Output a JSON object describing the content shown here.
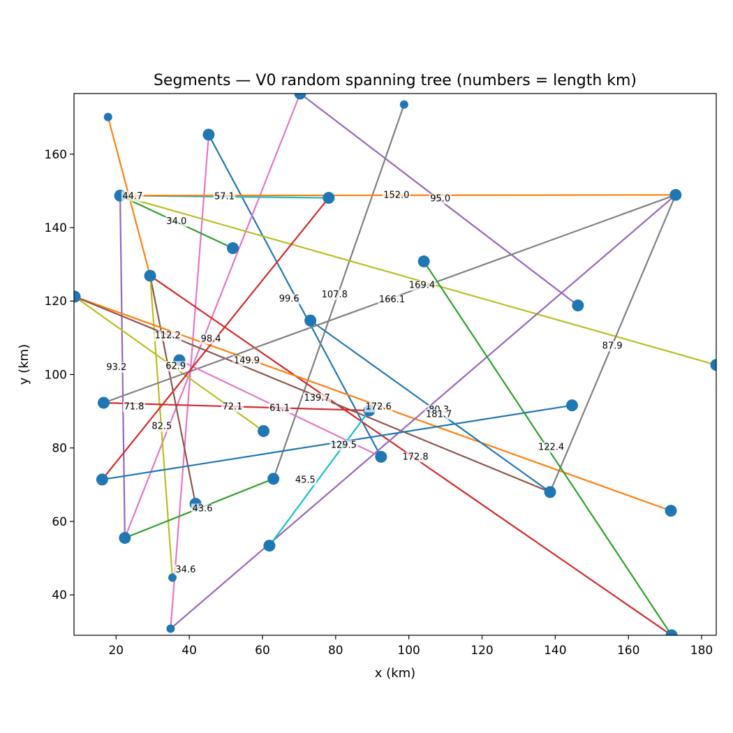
{
  "chart_data": {
    "type": "scatter",
    "title": "Segments — V0 random spanning tree (numbers = length km)",
    "xlabel": "x (km)",
    "ylabel": "y (km)",
    "xlim": [
      8.5,
      184
    ],
    "ylim": [
      29,
      176.5
    ],
    "xticks": [
      20,
      40,
      60,
      80,
      100,
      120,
      140,
      160,
      180
    ],
    "yticks": [
      40,
      60,
      80,
      100,
      120,
      140,
      160
    ],
    "grid": false,
    "legend": "none",
    "marker_color": "#1f77b4",
    "nodes": [
      {
        "id": 0,
        "x": 17.8,
        "y": 170.1,
        "big": false
      },
      {
        "id": 1,
        "x": 45.3,
        "y": 165.3,
        "big": true
      },
      {
        "id": 2,
        "x": 70.3,
        "y": 176.5,
        "big": true
      },
      {
        "id": 3,
        "x": 98.7,
        "y": 173.5,
        "big": false
      },
      {
        "id": 4,
        "x": 21.1,
        "y": 148.7,
        "big": true
      },
      {
        "id": 5,
        "x": 78.1,
        "y": 148.1,
        "big": true
      },
      {
        "id": 6,
        "x": 172.9,
        "y": 148.9,
        "big": true
      },
      {
        "id": 7,
        "x": 51.9,
        "y": 134.4,
        "big": true
      },
      {
        "id": 8,
        "x": 104.1,
        "y": 130.8,
        "big": true
      },
      {
        "id": 9,
        "x": 29.3,
        "y": 126.9,
        "big": true
      },
      {
        "id": 10,
        "x": 8.7,
        "y": 121.2,
        "big": true
      },
      {
        "id": 11,
        "x": 146.2,
        "y": 118.8,
        "big": true
      },
      {
        "id": 12,
        "x": 73.1,
        "y": 114.7,
        "big": true
      },
      {
        "id": 13,
        "x": 37.3,
        "y": 103.9,
        "big": true
      },
      {
        "id": 14,
        "x": 184.0,
        "y": 102.6,
        "big": true
      },
      {
        "id": 15,
        "x": 16.6,
        "y": 92.3,
        "big": true
      },
      {
        "id": 16,
        "x": 89.2,
        "y": 90.2,
        "big": true
      },
      {
        "id": 17,
        "x": 144.6,
        "y": 91.6,
        "big": true
      },
      {
        "id": 18,
        "x": 60.3,
        "y": 84.6,
        "big": true
      },
      {
        "id": 19,
        "x": 92.4,
        "y": 77.6,
        "big": true
      },
      {
        "id": 20,
        "x": 16.2,
        "y": 71.4,
        "big": true
      },
      {
        "id": 21,
        "x": 63.0,
        "y": 71.6,
        "big": true
      },
      {
        "id": 22,
        "x": 138.6,
        "y": 68.0,
        "big": true
      },
      {
        "id": 23,
        "x": 41.7,
        "y": 64.8,
        "big": true
      },
      {
        "id": 24,
        "x": 171.6,
        "y": 62.9,
        "big": true
      },
      {
        "id": 25,
        "x": 22.4,
        "y": 55.5,
        "big": true
      },
      {
        "id": 26,
        "x": 61.9,
        "y": 53.4,
        "big": true
      },
      {
        "id": 27,
        "x": 35.4,
        "y": 44.7,
        "big": false
      },
      {
        "id": 28,
        "x": 34.9,
        "y": 30.8,
        "big": false
      },
      {
        "id": 29,
        "x": 171.8,
        "y": 29.0,
        "big": true
      }
    ],
    "segments": [
      {
        "from": 0,
        "to": 9,
        "length": "",
        "color": "#ff7f0e"
      },
      {
        "from": 1,
        "to": 28,
        "length": "",
        "color": "#e377c2"
      },
      {
        "from": 1,
        "to": 19,
        "length": "99.6",
        "color": "#1f77b4"
      },
      {
        "from": 2,
        "to": 25,
        "length": "",
        "color": "#e377c2"
      },
      {
        "from": 2,
        "to": 11,
        "length": "95.0",
        "color": "#9467bd"
      },
      {
        "from": 3,
        "to": 21,
        "length": "107.8",
        "color": "#7f7f7f"
      },
      {
        "from": 4,
        "to": 5,
        "length": "57.1",
        "color": "#17becf"
      },
      {
        "from": 4,
        "to": 7,
        "length": "34.0",
        "color": "#2ca02c"
      },
      {
        "from": 4,
        "to": 6,
        "length": "152.0",
        "color": "#ff7f0e"
      },
      {
        "from": 4,
        "to": 14,
        "length": "169.4",
        "color": "#bcbd22"
      },
      {
        "from": 4,
        "to": 25,
        "length": "93.2",
        "color": "#9467bd"
      },
      {
        "from": 9,
        "to": 23,
        "length": "82.5",
        "color": "#8c564b"
      },
      {
        "from": 9,
        "to": 27,
        "length": "34.6",
        "color": "#bcbd22"
      },
      {
        "from": 9,
        "to": 29,
        "length": "139.7",
        "color": "#d62728"
      },
      {
        "from": 10,
        "to": 24,
        "length": "112.2",
        "color": "#ff7f0e"
      },
      {
        "from": 10,
        "to": 22,
        "length": "98.4",
        "color": "#8c564b"
      },
      {
        "from": 10,
        "to": 18,
        "length": "72.1",
        "color": "#bcbd22"
      },
      {
        "from": 12,
        "to": 22,
        "length": "80.3",
        "color": "#1f77b4"
      },
      {
        "from": 15,
        "to": 6,
        "length": "166.1",
        "color": "#7f7f7f"
      },
      {
        "from": 6,
        "to": 22,
        "length": "87.9",
        "color": "#7f7f7f"
      },
      {
        "from": 6,
        "to": 28,
        "length": "181.7",
        "color": "#9467bd"
      },
      {
        "from": 13,
        "to": 19,
        "length": "61.1",
        "color": "#e377c2"
      },
      {
        "from": 15,
        "to": 16,
        "length": "71.8",
        "color": "#d62728"
      },
      {
        "from": 20,
        "to": 5,
        "length": "149.9",
        "color": "#d62728"
      },
      {
        "from": 20,
        "to": 17,
        "length": "129.5",
        "color": "#1f77b4"
      },
      {
        "from": 8,
        "to": 29,
        "length": "122.4",
        "color": "#2ca02c"
      },
      {
        "from": 26,
        "to": 16,
        "length": "45.5",
        "color": "#17becf"
      },
      {
        "from": 25,
        "to": 21,
        "length": "43.6",
        "color": "#2ca02c"
      }
    ],
    "labels": [
      {
        "text": "44.7",
        "x": 24.5,
        "y": 148.7
      },
      {
        "text": "57.1",
        "x": 49.6,
        "y": 148.6
      },
      {
        "text": "152.0",
        "x": 96.6,
        "y": 148.9
      },
      {
        "text": "95.0",
        "x": 108.6,
        "y": 148.0
      },
      {
        "text": "34.0",
        "x": 36.5,
        "y": 141.8
      },
      {
        "text": "169.4",
        "x": 103.6,
        "y": 124.4
      },
      {
        "text": "99.6",
        "x": 67.3,
        "y": 120.7
      },
      {
        "text": "107.8",
        "x": 79.7,
        "y": 121.9
      },
      {
        "text": "166.1",
        "x": 95.4,
        "y": 120.5
      },
      {
        "text": "87.9",
        "x": 155.6,
        "y": 107.9
      },
      {
        "text": "112.2",
        "x": 34.1,
        "y": 110.7
      },
      {
        "text": "98.4",
        "x": 45.9,
        "y": 109.8
      },
      {
        "text": "149.9",
        "x": 55.7,
        "y": 103.9
      },
      {
        "text": "93.2",
        "x": 20.1,
        "y": 102.1
      },
      {
        "text": "62.9",
        "x": 36.3,
        "y": 102.4
      },
      {
        "text": "139.7",
        "x": 74.9,
        "y": 93.7
      },
      {
        "text": "172.6",
        "x": 91.7,
        "y": 91.3
      },
      {
        "text": "80.3",
        "x": 108.2,
        "y": 90.5
      },
      {
        "text": "181.7",
        "x": 108.2,
        "y": 89.3
      },
      {
        "text": "71.8",
        "x": 24.9,
        "y": 91.3
      },
      {
        "text": "72.1",
        "x": 51.8,
        "y": 91.3
      },
      {
        "text": "61.1",
        "x": 64.7,
        "y": 91.0
      },
      {
        "text": "82.5",
        "x": 32.5,
        "y": 86.0
      },
      {
        "text": "129.5",
        "x": 82.2,
        "y": 80.9
      },
      {
        "text": "122.4",
        "x": 138.9,
        "y": 80.3
      },
      {
        "text": "172.8",
        "x": 101.8,
        "y": 77.7
      },
      {
        "text": "45.5",
        "x": 71.7,
        "y": 71.4
      },
      {
        "text": "43.6",
        "x": 43.6,
        "y": 63.6
      },
      {
        "text": "34.6",
        "x": 39.0,
        "y": 47.0
      }
    ]
  }
}
